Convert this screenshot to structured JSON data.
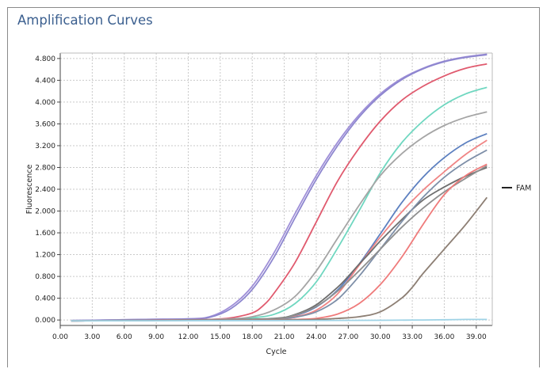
{
  "panel": {
    "title": "Amplification Curves"
  },
  "chart_data": {
    "type": "line",
    "title": "Amplification Curves",
    "xlabel": "Cycle",
    "ylabel": "Fluorescence",
    "xlim": [
      0,
      40.5
    ],
    "ylim": [
      -100,
      4900
    ],
    "x_ticks": [
      0,
      3,
      6,
      9,
      12,
      15,
      18,
      21,
      24,
      27,
      30,
      33,
      36,
      39
    ],
    "x_tick_labels": [
      "0.00",
      "3.00",
      "6.00",
      "9.00",
      "12.00",
      "15.00",
      "18.00",
      "21.00",
      "24.00",
      "27.00",
      "30.00",
      "33.00",
      "36.00",
      "39.00"
    ],
    "y_ticks": [
      0,
      400,
      800,
      1200,
      1600,
      2000,
      2400,
      2800,
      3200,
      3600,
      4000,
      4400,
      4800
    ],
    "y_tick_labels": [
      "0.000",
      "0.400",
      "0.800",
      "1.200",
      "1.600",
      "2.000",
      "2.400",
      "2.800",
      "3.200",
      "3.600",
      "4.000",
      "4.400",
      "4.800"
    ],
    "grid": true,
    "legend": {
      "position": "right",
      "entries": [
        {
          "label": "FAM",
          "color": "#222222"
        }
      ]
    },
    "series": [
      {
        "color": "#9f8fd8",
        "x": [
          1,
          8,
          12,
          14,
          16,
          18,
          20,
          22,
          24,
          26,
          28,
          30,
          32,
          34,
          36,
          38,
          40
        ],
        "y": [
          -10,
          10,
          20,
          60,
          250,
          620,
          1220,
          1950,
          2650,
          3260,
          3760,
          4150,
          4430,
          4620,
          4750,
          4830,
          4880
        ]
      },
      {
        "color": "#8d86cf",
        "x": [
          1,
          8,
          12,
          14,
          16,
          18,
          20,
          22,
          24,
          26,
          28,
          30,
          32,
          34,
          36,
          38,
          40
        ],
        "y": [
          -10,
          10,
          20,
          50,
          210,
          560,
          1140,
          1870,
          2580,
          3200,
          3720,
          4120,
          4410,
          4610,
          4740,
          4820,
          4870
        ]
      },
      {
        "color": "#e05a6e",
        "x": [
          1,
          10,
          14,
          16,
          18,
          19,
          20,
          22,
          24,
          26,
          28,
          30,
          32,
          34,
          36,
          38,
          40
        ],
        "y": [
          -15,
          0,
          10,
          40,
          130,
          260,
          480,
          1050,
          1800,
          2550,
          3150,
          3650,
          4030,
          4290,
          4480,
          4620,
          4700
        ]
      },
      {
        "color": "#6fd7c0",
        "x": [
          1,
          12,
          16,
          18,
          20,
          22,
          24,
          26,
          28,
          30,
          32,
          34,
          36,
          38,
          40
        ],
        "y": [
          -15,
          0,
          10,
          40,
          100,
          300,
          700,
          1320,
          2000,
          2700,
          3250,
          3650,
          3950,
          4150,
          4270
        ]
      },
      {
        "color": "#a5a5a5",
        "x": [
          1,
          12,
          16,
          18,
          20,
          22,
          24,
          26,
          28,
          30,
          32,
          34,
          36,
          38,
          40
        ],
        "y": [
          -15,
          0,
          20,
          60,
          180,
          430,
          900,
          1500,
          2100,
          2650,
          3050,
          3350,
          3570,
          3720,
          3820
        ]
      },
      {
        "color": "#5d80c0",
        "x": [
          1,
          14,
          20,
          22,
          24,
          26,
          28,
          30,
          32,
          34,
          36,
          38,
          40
        ],
        "y": [
          -15,
          0,
          20,
          80,
          240,
          550,
          1020,
          1580,
          2150,
          2620,
          2980,
          3250,
          3420
        ]
      },
      {
        "color": "#f08585",
        "x": [
          1,
          14,
          20,
          22,
          24,
          26,
          28,
          30,
          32,
          34,
          36,
          38,
          40
        ],
        "y": [
          -15,
          0,
          20,
          60,
          180,
          480,
          1000,
          1520,
          1980,
          2380,
          2720,
          3040,
          3300
        ]
      },
      {
        "color": "#6e6e6e",
        "x": [
          1,
          14,
          20,
          22,
          24,
          26,
          27,
          28,
          29,
          30,
          32,
          34,
          36,
          38,
          40
        ],
        "y": [
          -15,
          0,
          30,
          100,
          280,
          600,
          800,
          1020,
          1230,
          1450,
          1840,
          2200,
          2440,
          2640,
          2800
        ]
      },
      {
        "color": "#7e8fa8",
        "x": [
          1,
          14,
          20,
          22,
          24,
          26,
          28,
          30,
          32,
          34,
          36,
          38,
          40
        ],
        "y": [
          -15,
          0,
          15,
          50,
          150,
          380,
          800,
          1300,
          1800,
          2250,
          2620,
          2900,
          3120
        ]
      },
      {
        "color": "#8f8f8f",
        "x": [
          1,
          14,
          20,
          22,
          24,
          26,
          28,
          30,
          32,
          34,
          36,
          38,
          40
        ],
        "y": [
          -15,
          0,
          20,
          90,
          250,
          530,
          900,
          1300,
          1700,
          2050,
          2350,
          2600,
          2830
        ]
      },
      {
        "color": "#ef7b7b",
        "x": [
          1,
          18,
          22,
          24,
          26,
          28,
          30,
          32,
          34,
          36,
          38,
          40
        ],
        "y": [
          -15,
          0,
          10,
          30,
          110,
          300,
          650,
          1150,
          1750,
          2300,
          2650,
          2860
        ]
      },
      {
        "color": "#8d7f74",
        "x": [
          1,
          20,
          24,
          26,
          28,
          30,
          32,
          33,
          34,
          36,
          38,
          40
        ],
        "y": [
          -15,
          0,
          10,
          30,
          60,
          150,
          400,
          600,
          850,
          1300,
          1750,
          2250
        ]
      },
      {
        "color": "#9fd3e6",
        "x": [
          1,
          20,
          30,
          34,
          36,
          38,
          40
        ],
        "y": [
          -15,
          -10,
          -5,
          0,
          5,
          10,
          10
        ]
      }
    ]
  }
}
